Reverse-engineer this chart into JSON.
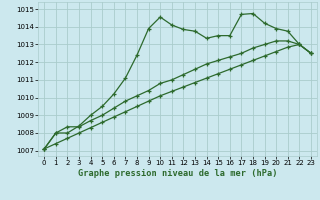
{
  "title": "Graphe pression niveau de la mer (hPa)",
  "bg_color": "#cce8ee",
  "grid_color": "#aacccc",
  "line_color": "#2d6a2d",
  "xlim": [
    -0.5,
    23.5
  ],
  "ylim": [
    1006.7,
    1015.4
  ],
  "xticks": [
    0,
    1,
    2,
    3,
    4,
    5,
    6,
    7,
    8,
    9,
    10,
    11,
    12,
    13,
    14,
    15,
    16,
    17,
    18,
    19,
    20,
    21,
    22,
    23
  ],
  "yticks": [
    1007,
    1008,
    1009,
    1010,
    1011,
    1012,
    1013,
    1014,
    1015
  ],
  "line1_x": [
    0,
    1,
    2,
    3,
    4,
    5,
    6,
    7,
    8,
    9,
    10,
    11,
    12,
    13,
    14,
    15,
    16,
    17,
    18,
    19,
    20,
    21,
    22,
    23
  ],
  "line1_y": [
    1007.1,
    1008.0,
    1008.0,
    1008.4,
    1009.0,
    1009.5,
    1010.2,
    1011.1,
    1012.4,
    1013.9,
    1014.55,
    1014.1,
    1013.85,
    1013.75,
    1013.35,
    1013.5,
    1013.5,
    1014.7,
    1014.75,
    1014.2,
    1013.9,
    1013.75,
    1013.0,
    1012.5
  ],
  "line2_x": [
    0,
    1,
    2,
    3,
    4,
    5,
    6,
    7,
    8,
    9,
    10,
    11,
    12,
    13,
    14,
    15,
    16,
    17,
    18,
    19,
    20,
    21,
    22,
    23
  ],
  "line2_y": [
    1007.1,
    1008.0,
    1008.35,
    1008.35,
    1008.7,
    1009.0,
    1009.4,
    1009.8,
    1010.1,
    1010.4,
    1010.8,
    1011.0,
    1011.3,
    1011.6,
    1011.9,
    1012.1,
    1012.3,
    1012.5,
    1012.8,
    1013.0,
    1013.2,
    1013.2,
    1013.0,
    1012.5
  ],
  "line3_x": [
    0,
    1,
    2,
    3,
    4,
    5,
    6,
    7,
    8,
    9,
    10,
    11,
    12,
    13,
    14,
    15,
    16,
    17,
    18,
    19,
    20,
    21,
    22,
    23
  ],
  "line3_y": [
    1007.1,
    1007.4,
    1007.7,
    1008.0,
    1008.3,
    1008.6,
    1008.9,
    1009.2,
    1009.5,
    1009.8,
    1010.1,
    1010.35,
    1010.6,
    1010.85,
    1011.1,
    1011.35,
    1011.6,
    1011.85,
    1012.1,
    1012.35,
    1012.6,
    1012.85,
    1013.0,
    1012.5
  ]
}
